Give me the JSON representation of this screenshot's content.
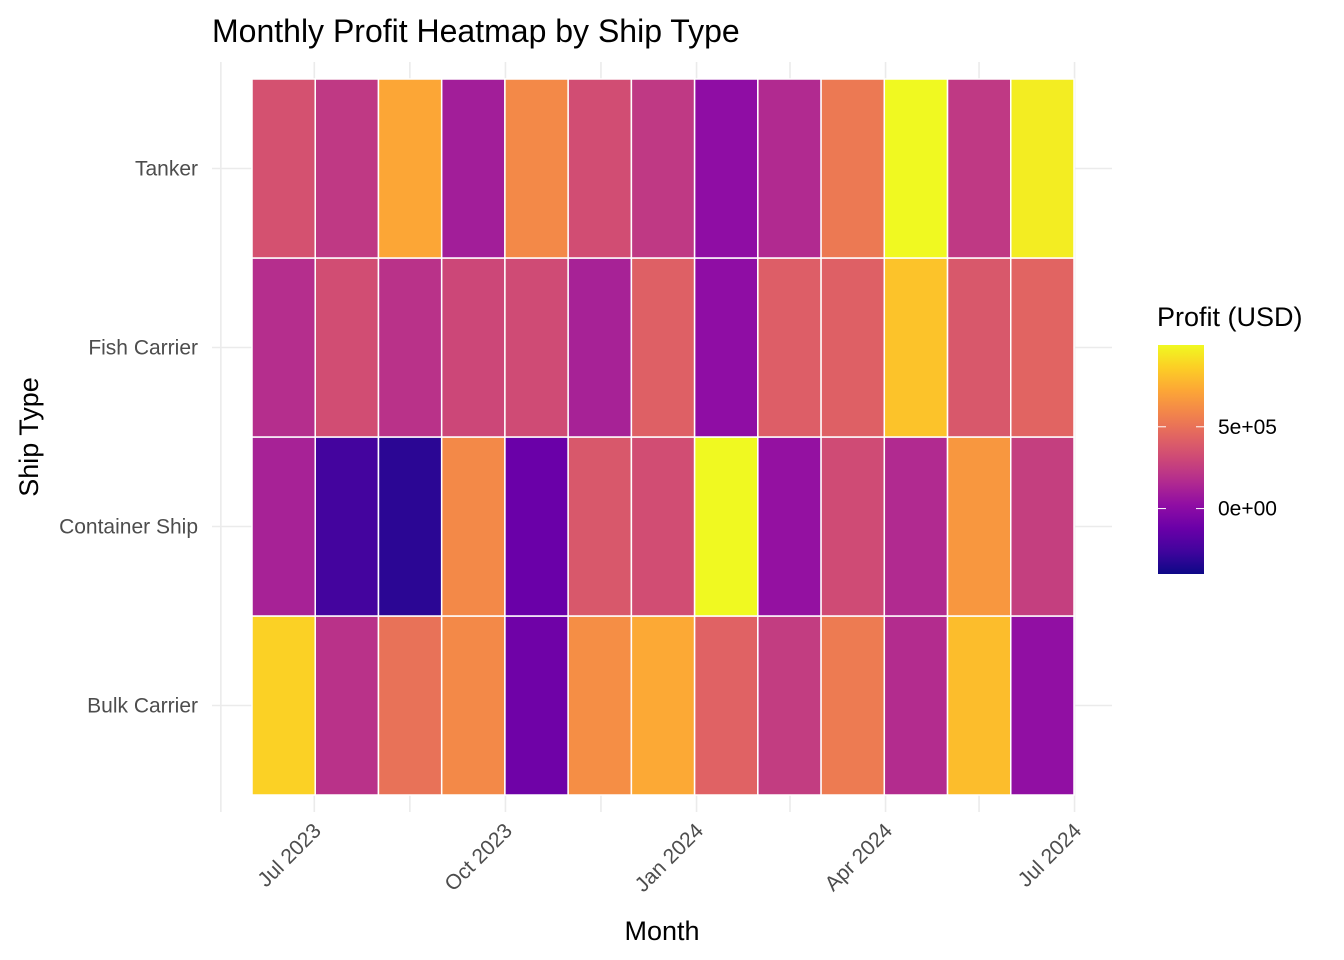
{
  "chart_data": {
    "type": "heatmap",
    "title": "Monthly Profit Heatmap by Ship Type",
    "xlabel": "Month",
    "ylabel": "Ship Type",
    "x_ticks": [
      "Jul 2023",
      "Oct 2023",
      "Jan 2024",
      "Apr 2024",
      "Jul 2024"
    ],
    "months": [
      "2023-06",
      "2023-07",
      "2023-08",
      "2023-09",
      "2023-10",
      "2023-11",
      "2023-12",
      "2024-01",
      "2024-02",
      "2024-03",
      "2024-04",
      "2024-05",
      "2024-06"
    ],
    "categories": [
      "Bulk Carrier",
      "Container Ship",
      "Fish Carrier",
      "Tanker"
    ],
    "values": {
      "Tanker": [
        350000,
        230000,
        720000,
        100000,
        600000,
        330000,
        230000,
        20000,
        160000,
        530000,
        1050000,
        230000,
        960000
      ],
      "Fish Carrier": [
        180000,
        330000,
        200000,
        300000,
        320000,
        120000,
        420000,
        20000,
        410000,
        420000,
        820000,
        380000,
        440000
      ],
      "Container Ship": [
        120000,
        -250000,
        -320000,
        600000,
        -120000,
        380000,
        330000,
        1000000,
        40000,
        320000,
        160000,
        660000,
        260000
      ],
      "Bulk Carrier": [
        870000,
        200000,
        500000,
        600000,
        -100000,
        620000,
        730000,
        430000,
        250000,
        540000,
        170000,
        800000,
        30000
      ]
    },
    "legend": {
      "title": "Profit (USD)",
      "ticks": [
        0,
        500000
      ],
      "tick_labels": [
        "0e+00",
        "5e+05"
      ],
      "range": [
        -400000,
        1000000
      ]
    },
    "colormap": "plasma",
    "grid": true
  }
}
